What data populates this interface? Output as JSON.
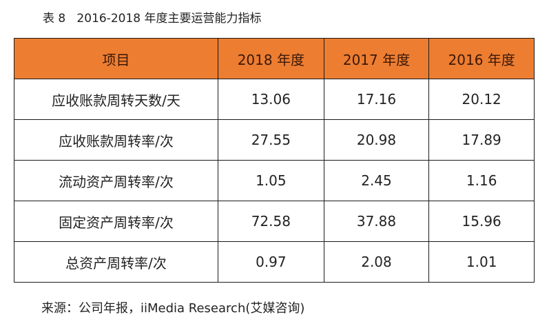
{
  "title": "表 8   2016-2018 年度主要运营能力指标",
  "table": {
    "headers": [
      "项目",
      "2018 年度",
      "2017 年度",
      "2016 年度"
    ],
    "header_color": "#ED7D31",
    "rows": [
      [
        "应收账款周转天数/天",
        "13.06",
        "17.16",
        "20.12"
      ],
      [
        "应收账款周转率/次",
        "27.55",
        "20.98",
        "17.89"
      ],
      [
        "流动资产周转率/次",
        "1.05",
        "2.45",
        "1.16"
      ],
      [
        "固定资产周转率/次",
        "72.58",
        "37.88",
        "15.96"
      ],
      [
        "总资产周转率/次",
        "0.97",
        "2.08",
        "1.01"
      ]
    ]
  },
  "source": "来源：公司年报，iiMedia Research(艾媒咨询)"
}
